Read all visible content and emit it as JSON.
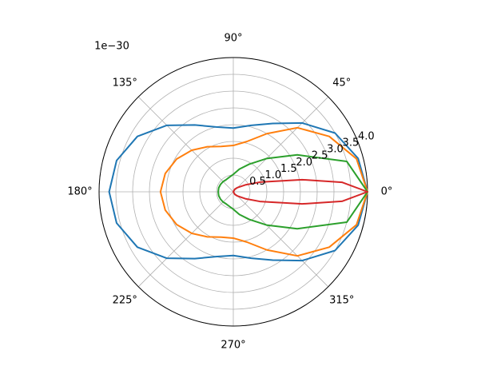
{
  "chart_data": {
    "type": "polar",
    "offset_text": "1e−30",
    "ylim": [
      0,
      4.0
    ],
    "yticks": [
      0.5,
      {
        "value": 1,
        "label": "1.0"
      },
      1.5,
      {
        "value": 2,
        "label": "2.0"
      },
      2.5,
      {
        "value": 3,
        "label": "3.0"
      },
      3.5,
      {
        "value": 4,
        "label": "4.0"
      }
    ],
    "xticks": [
      {
        "value": 0,
        "label": "0°"
      },
      {
        "value": 45,
        "label": "45°"
      },
      {
        "value": 90,
        "label": "90°"
      },
      {
        "value": 135,
        "label": "135°"
      },
      {
        "value": 180,
        "label": "180°"
      },
      {
        "value": 225,
        "label": "225°"
      },
      {
        "value": 270,
        "label": "270°"
      },
      {
        "value": 315,
        "label": "315°"
      }
    ],
    "grid": true,
    "series": [
      {
        "color": "#1f77b4",
        "x": [
          0,
          15,
          30,
          45,
          60,
          75,
          90,
          105,
          120,
          135,
          150,
          165,
          180,
          195,
          210,
          225,
          240,
          255,
          270,
          285,
          300,
          315,
          330,
          345
        ],
        "values": [
          4.0,
          3.85,
          3.5,
          2.9,
          2.35,
          2.05,
          1.9,
          2.0,
          2.3,
          2.8,
          3.3,
          3.6,
          3.7,
          3.6,
          3.3,
          2.8,
          2.3,
          2.0,
          1.9,
          2.05,
          2.35,
          2.9,
          3.5,
          3.85
        ]
      },
      {
        "color": "#ff7f0e",
        "x": [
          0,
          15,
          30,
          45,
          60,
          75,
          90,
          105,
          120,
          135,
          150,
          165,
          180,
          195,
          210,
          225,
          240,
          255,
          270,
          285,
          300,
          315,
          330,
          345
        ],
        "values": [
          4.0,
          3.8,
          3.3,
          2.7,
          2.0,
          1.55,
          1.38,
          1.4,
          1.55,
          1.75,
          1.95,
          2.1,
          2.17,
          2.1,
          1.95,
          1.75,
          1.55,
          1.4,
          1.38,
          1.55,
          2.0,
          2.7,
          3.3,
          3.8
        ]
      },
      {
        "color": "#2ca02c",
        "x": [
          0,
          15,
          30,
          45,
          60,
          75,
          90,
          105,
          120,
          135,
          150,
          165,
          180,
          195,
          210,
          225,
          240,
          255,
          270,
          285,
          300,
          315,
          330,
          345
        ],
        "values": [
          4.0,
          3.5,
          2.2,
          1.4,
          0.95,
          0.7,
          0.52,
          0.45,
          0.42,
          0.43,
          0.44,
          0.45,
          0.45,
          0.45,
          0.44,
          0.43,
          0.42,
          0.45,
          0.52,
          0.7,
          0.95,
          1.4,
          2.2,
          3.5
        ]
      },
      {
        "color": "#d62728",
        "x": [
          0,
          5,
          10,
          20,
          30,
          45,
          60,
          90,
          180,
          270,
          300,
          315,
          330,
          340,
          350,
          355
        ],
        "values": [
          4.0,
          3.25,
          2.08,
          0.84,
          0.41,
          0.18,
          0.09,
          0,
          0,
          0,
          0.09,
          0.18,
          0.41,
          0.84,
          2.08,
          3.25
        ]
      }
    ]
  }
}
